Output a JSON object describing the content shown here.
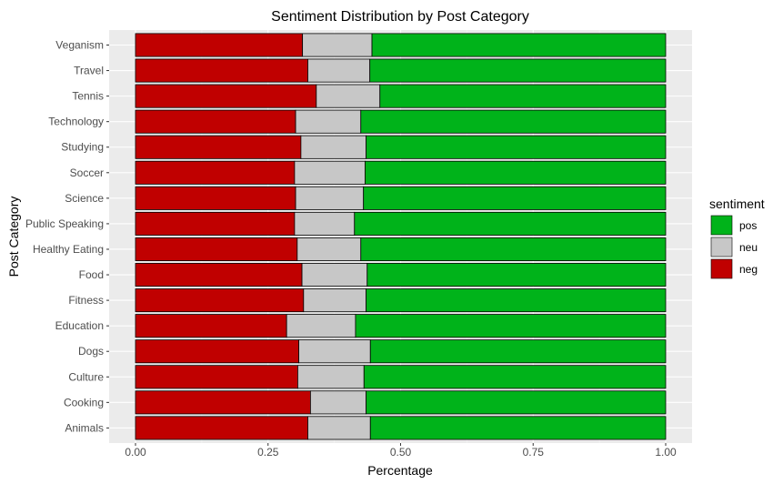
{
  "chart_data": {
    "type": "bar",
    "orientation": "horizontal",
    "stacked": true,
    "title": "Sentiment Distribution by Post Category",
    "xlabel": "Percentage",
    "ylabel": "Post Category",
    "xlim": [
      0,
      1
    ],
    "xticks": [
      "0.00",
      "0.25",
      "0.50",
      "0.75",
      "1.00"
    ],
    "grid": true,
    "legend_position": "right",
    "legend_title": "sentiment",
    "legend": [
      {
        "name": "pos",
        "color": "#00b31a"
      },
      {
        "name": "neu",
        "color": "#c7c7c7"
      },
      {
        "name": "neg",
        "color": "#c00000"
      }
    ],
    "categories": [
      "Veganism",
      "Travel",
      "Tennis",
      "Technology",
      "Studying",
      "Soccer",
      "Science",
      "Public Speaking",
      "Healthy Eating",
      "Food",
      "Fitness",
      "Education",
      "Dogs",
      "Culture",
      "Cooking",
      "Animals"
    ],
    "series": [
      {
        "name": "neg",
        "color": "#c00000",
        "values": [
          0.315,
          0.325,
          0.341,
          0.302,
          0.312,
          0.3,
          0.302,
          0.3,
          0.305,
          0.314,
          0.317,
          0.285,
          0.308,
          0.306,
          0.33,
          0.325
        ]
      },
      {
        "name": "neu",
        "color": "#c7c7c7",
        "values": [
          0.131,
          0.117,
          0.12,
          0.123,
          0.123,
          0.133,
          0.128,
          0.113,
          0.12,
          0.123,
          0.118,
          0.13,
          0.135,
          0.125,
          0.105,
          0.118
        ]
      },
      {
        "name": "pos",
        "color": "#00b31a",
        "values": [
          0.554,
          0.558,
          0.539,
          0.575,
          0.565,
          0.567,
          0.57,
          0.587,
          0.575,
          0.563,
          0.565,
          0.585,
          0.557,
          0.569,
          0.565,
          0.557
        ]
      }
    ]
  }
}
